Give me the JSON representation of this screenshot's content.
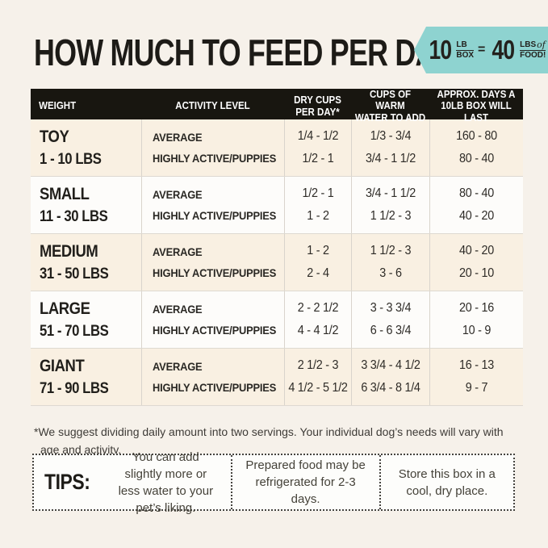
{
  "header": {
    "title": "HOW MUCH TO FEED PER DAY",
    "badge": {
      "qty1": "10",
      "unit1_top": "LB",
      "unit1_bottom": "BOX",
      "equals": "=",
      "qty2": "40",
      "unit2_top": "LBS",
      "unit2_of": "of",
      "unit2_bottom": "FOOD!"
    }
  },
  "table": {
    "headers": {
      "weight": "WEIGHT",
      "activity": "ACTIVITY LEVEL",
      "dry_cups_1": "DRY CUPS",
      "dry_cups_2": "PER DAY*",
      "water_1": "CUPS OF WARM",
      "water_2": "WATER TO ADD",
      "days_1": "APPROX. DAYS A",
      "days_2": "10LB BOX WILL LAST"
    },
    "rows": [
      {
        "size": "TOY",
        "range": "1 - 10 LBS",
        "activity": [
          "AVERAGE",
          "HIGHLY ACTIVE/PUPPIES"
        ],
        "dry_cups": [
          "1/4 - 1/2",
          "1/2 - 1"
        ],
        "water": [
          "1/3 - 3/4",
          "3/4 - 1 1/2"
        ],
        "days": [
          "160 - 80",
          "80 - 40"
        ]
      },
      {
        "size": "SMALL",
        "range": "11 - 30 LBS",
        "activity": [
          "AVERAGE",
          "HIGHLY ACTIVE/PUPPIES"
        ],
        "dry_cups": [
          "1/2 - 1",
          "1 - 2"
        ],
        "water": [
          "3/4 - 1 1/2",
          "1 1/2 - 3"
        ],
        "days": [
          "80 - 40",
          "40 - 20"
        ]
      },
      {
        "size": "MEDIUM",
        "range": "31 - 50 LBS",
        "activity": [
          "AVERAGE",
          "HIGHLY ACTIVE/PUPPIES"
        ],
        "dry_cups": [
          "1 - 2",
          "2 - 4"
        ],
        "water": [
          "1 1/2 - 3",
          "3 - 6"
        ],
        "days": [
          "40 - 20",
          "20 - 10"
        ]
      },
      {
        "size": "LARGE",
        "range": "51 - 70 LBS",
        "activity": [
          "AVERAGE",
          "HIGHLY ACTIVE/PUPPIES"
        ],
        "dry_cups": [
          "2 - 2 1/2",
          "4 - 4 1/2"
        ],
        "water": [
          "3 - 3 3/4",
          "6 - 6 3/4"
        ],
        "days": [
          "20 - 16",
          "10 - 9"
        ]
      },
      {
        "size": "GIANT",
        "range": "71 - 90 LBS",
        "activity": [
          "AVERAGE",
          "HIGHLY ACTIVE/PUPPIES"
        ],
        "dry_cups": [
          "2 1/2 - 3",
          "4 1/2 - 5 1/2"
        ],
        "water": [
          "3 3/4 - 4 1/2",
          "6 3/4 - 8 1/4"
        ],
        "days": [
          "16 - 13",
          "9 - 7"
        ]
      }
    ]
  },
  "footnote": "*We suggest dividing daily amount into two servings. Your individual dog’s needs will vary with age and activity.",
  "tips": {
    "label": "TIPS:",
    "items": [
      "You can add slightly more or less water to your pet’s liking.",
      "Prepared food may be refrigerated for 2-3 days.",
      "Store this box in a cool, dry place."
    ]
  },
  "colors": {
    "accent_teal": "#8ed3d0",
    "header_bar_black": "#181610",
    "row_cream": "#f9f0e2",
    "row_white": "#fdfcfa",
    "page_background": "#f6f1ea"
  }
}
